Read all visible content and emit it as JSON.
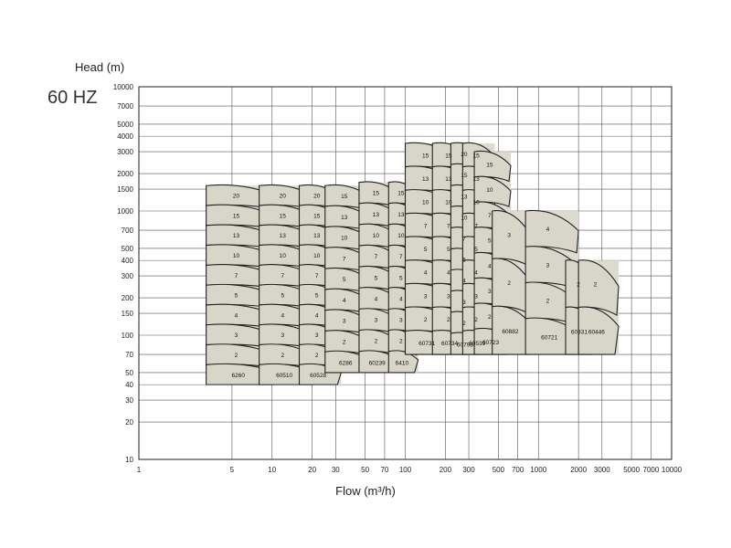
{
  "frequency_label": "60 HZ",
  "chart_data": {
    "type": "area",
    "title": "",
    "xlabel": "Flow (m³/h)",
    "ylabel": "Head (m)",
    "x_scale": "log",
    "y_scale": "log",
    "xlim": [
      1,
      10000
    ],
    "ylim": [
      10,
      10000
    ],
    "grid": true,
    "x_ticks": [
      1,
      5,
      10,
      20,
      30,
      50,
      70,
      100,
      200,
      300,
      500,
      700,
      1000,
      2000,
      3000,
      5000,
      7000,
      10000
    ],
    "y_ticks": [
      10,
      20,
      30,
      40,
      50,
      70,
      100,
      150,
      200,
      300,
      400,
      500,
      700,
      1000,
      1500,
      2000,
      3000,
      4000,
      5000,
      7000,
      10000
    ],
    "pump_ranges": [
      {
        "model": "6260",
        "q_min": 3.2,
        "q_max": 11,
        "h_min": 40,
        "h_max": 1600,
        "stages": [
          "20",
          "15",
          "13",
          "10",
          "7",
          "5",
          "4",
          "3",
          "2"
        ]
      },
      {
        "model": "60510",
        "q_min": 8,
        "q_max": 21,
        "h_min": 40,
        "h_max": 1600,
        "stages": [
          "20",
          "15",
          "13",
          "10",
          "7",
          "5",
          "4",
          "3",
          "2"
        ]
      },
      {
        "model": "60528",
        "q_min": 16,
        "q_max": 33,
        "h_min": 40,
        "h_max": 1600,
        "stages": [
          "20",
          "15",
          "13",
          "10",
          "7",
          "5",
          "4",
          "3",
          "2"
        ]
      },
      {
        "model": "6286",
        "q_min": 25,
        "q_max": 55,
        "h_min": 50,
        "h_max": 1600,
        "stages": [
          "15",
          "13",
          "10",
          "7",
          "5",
          "4",
          "3",
          "2"
        ]
      },
      {
        "model": "60239",
        "q_min": 45,
        "q_max": 90,
        "h_min": 50,
        "h_max": 1700,
        "stages": [
          "15",
          "13",
          "10",
          "7",
          "5",
          "4",
          "3",
          "2"
        ]
      },
      {
        "model": "6410",
        "q_min": 75,
        "q_max": 125,
        "h_min": 50,
        "h_max": 1700,
        "stages": [
          "15",
          "13",
          "10",
          "7",
          "5",
          "4",
          "3",
          "2"
        ]
      },
      {
        "model": "60731",
        "q_min": 100,
        "q_max": 230,
        "h_min": 70,
        "h_max": 3500,
        "stages": [
          "15",
          "13",
          "10",
          "7",
          "5",
          "4",
          "3",
          "2"
        ]
      },
      {
        "model": "60734",
        "q_min": 160,
        "q_max": 310,
        "h_min": 70,
        "h_max": 3500,
        "stages": [
          "15",
          "13",
          "10",
          "7",
          "5",
          "4",
          "3",
          "2"
        ]
      },
      {
        "model": "60798",
        "q_min": 220,
        "q_max": 380,
        "h_min": 70,
        "h_max": 3500,
        "stages": [
          "20",
          "15",
          "13",
          "10",
          "7",
          "5",
          "4",
          "3",
          "2"
        ]
      },
      {
        "model": "60539",
        "q_min": 270,
        "q_max": 470,
        "h_min": 70,
        "h_max": 3500,
        "stages": [
          "15",
          "13",
          "10",
          "7",
          "5",
          "4",
          "3",
          "2"
        ]
      },
      {
        "model": "60723",
        "q_min": 330,
        "q_max": 620,
        "h_min": 70,
        "h_max": 3000,
        "stages": [
          "15",
          "10",
          "7",
          "5",
          "4",
          "3",
          "2"
        ]
      },
      {
        "model": "60882",
        "q_min": 450,
        "q_max": 900,
        "h_min": 70,
        "h_max": 1000,
        "stages": [
          "3",
          "2"
        ]
      },
      {
        "model": "60721",
        "q_min": 800,
        "q_max": 2000,
        "h_min": 70,
        "h_max": 1000,
        "stages": [
          "4",
          "3",
          "2"
        ]
      },
      {
        "model": "60331",
        "q_min": 1600,
        "q_max": 2700,
        "h_min": 70,
        "h_max": 400,
        "stages": [
          "2"
        ]
      },
      {
        "model": "60446",
        "q_min": 2000,
        "q_max": 4000,
        "h_min": 70,
        "h_max": 400,
        "stages": [
          "2"
        ]
      }
    ]
  }
}
